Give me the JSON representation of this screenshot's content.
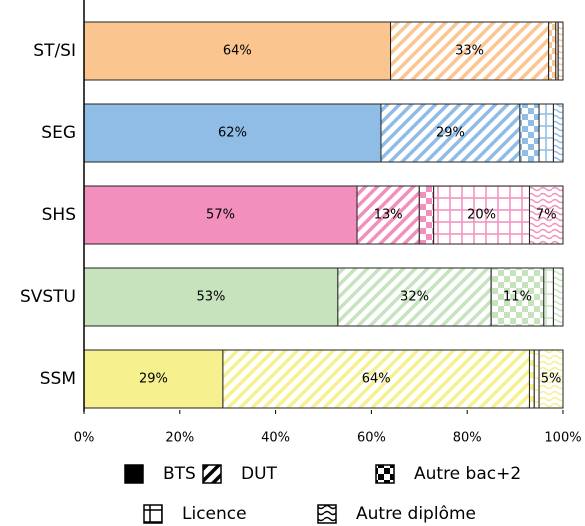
{
  "chart_data": {
    "type": "stacked-barh",
    "categories": [
      "ST/SI",
      "SEG",
      "SHS",
      "SVSTU",
      "SSM"
    ],
    "category_colors": [
      "#fbc590",
      "#8fbde6",
      "#f28fbd",
      "#c6e3bd",
      "#f6f08e"
    ],
    "series": [
      {
        "name": "BTS",
        "pattern": "solid",
        "values": [
          64,
          62,
          57,
          53,
          29
        ],
        "value_labels": [
          "64%",
          "62%",
          "57%",
          "53%",
          "29%"
        ]
      },
      {
        "name": "DUT",
        "pattern": "diagonal",
        "values": [
          33,
          29,
          13,
          32,
          64
        ],
        "value_labels": [
          "33%",
          "29%",
          "13%",
          "32%",
          "64%"
        ]
      },
      {
        "name": "Autre bac+2",
        "pattern": "checker",
        "values": [
          1.5,
          4,
          3,
          11,
          1
        ],
        "value_labels": [
          null,
          null,
          null,
          "11%",
          null
        ]
      },
      {
        "name": "Licence",
        "pattern": "grid",
        "values": [
          0.5,
          3,
          20,
          2,
          1
        ],
        "value_labels": [
          null,
          null,
          "20%",
          null,
          null
        ]
      },
      {
        "name": "Autre diplôme",
        "pattern": "zigzag",
        "values": [
          1,
          2,
          7,
          2,
          5
        ],
        "value_labels": [
          null,
          null,
          "7%",
          null,
          "5%"
        ]
      }
    ],
    "xlim": [
      0,
      100
    ],
    "xticks": [
      {
        "value": 0,
        "label": "0%"
      },
      {
        "value": 20,
        "label": "20%"
      },
      {
        "value": 40,
        "label": "40%"
      },
      {
        "value": 60,
        "label": "60%"
      },
      {
        "value": 80,
        "label": "80%"
      },
      {
        "value": 100,
        "label": "100%"
      }
    ]
  }
}
